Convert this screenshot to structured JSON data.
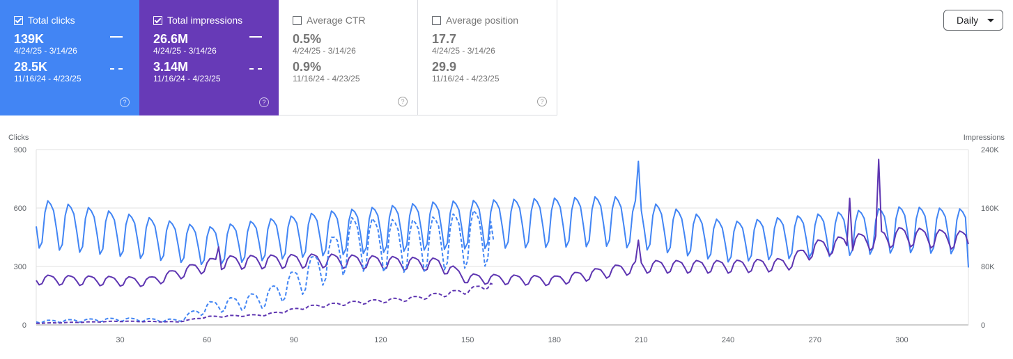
{
  "cards": [
    {
      "id": "clicks",
      "label": "Total clicks",
      "checked": true,
      "value1": "139K",
      "range1": "4/24/25 - 3/14/26",
      "value2": "28.5K",
      "range2": "11/16/24 - 4/23/25"
    },
    {
      "id": "impressions",
      "label": "Total impressions",
      "checked": true,
      "value1": "26.6M",
      "range1": "4/24/25 - 3/14/26",
      "value2": "3.14M",
      "range2": "11/16/24 - 4/23/25"
    },
    {
      "id": "ctr",
      "label": "Average CTR",
      "checked": false,
      "value1": "0.5%",
      "range1": "4/24/25 - 3/14/26",
      "value2": "0.9%",
      "range2": "11/16/24 - 4/23/25"
    },
    {
      "id": "position",
      "label": "Average position",
      "checked": false,
      "value1": "17.7",
      "range1": "4/24/25 - 3/14/26",
      "value2": "29.9",
      "range2": "11/16/24 - 4/23/25"
    }
  ],
  "help_glyph": "?",
  "granularity": {
    "label": "Daily"
  },
  "colors": {
    "clicks": "#4285f4",
    "impressions": "#5e35b1",
    "grid": "#e0e0e0"
  },
  "chart_data": {
    "type": "line",
    "xlabel": "",
    "left_label": "Clicks",
    "right_label": "Impressions",
    "left_ticks": [
      "0",
      "300",
      "600",
      "900"
    ],
    "right_ticks": [
      "0",
      "80K",
      "160K",
      "240K"
    ],
    "x_ticks": [
      30,
      60,
      90,
      120,
      150,
      180,
      210,
      240,
      270,
      300
    ],
    "x_range": [
      1,
      323
    ],
    "ylim_clicks": [
      0,
      900
    ],
    "ylim_impressions": [
      0,
      240000
    ],
    "series": [
      {
        "name": "Clicks",
        "period": "current",
        "axis": "left",
        "style": "solid",
        "color": "#4285f4",
        "anchors": [
          [
            1,
            490
          ],
          [
            60,
            380
          ],
          [
            100,
            440
          ],
          [
            140,
            480
          ],
          [
            200,
            500
          ],
          [
            215,
            470
          ],
          [
            240,
            400
          ],
          [
            260,
            420
          ],
          [
            300,
            460
          ],
          [
            323,
            450
          ]
        ],
        "amplitude": 0.32,
        "spikes": [
          [
            209,
            840
          ]
        ],
        "end_value": 295
      },
      {
        "name": "Impressions",
        "period": "current",
        "axis": "left",
        "style": "solid",
        "color": "#5e35b1",
        "anchors": [
          [
            1,
            225
          ],
          [
            40,
            215
          ],
          [
            64,
            310
          ],
          [
            100,
            320
          ],
          [
            140,
            300
          ],
          [
            150,
            230
          ],
          [
            180,
            220
          ],
          [
            210,
            290
          ],
          [
            240,
            290
          ],
          [
            260,
            300
          ],
          [
            270,
            380
          ],
          [
            300,
            440
          ],
          [
            323,
            420
          ]
        ],
        "amplitude": 0.14,
        "spikes": [
          [
            64,
            400
          ],
          [
            209,
            435
          ],
          [
            282,
            650
          ],
          [
            292,
            850
          ]
        ],
        "end_value": 415
      },
      {
        "name": "Clicks",
        "period": "previous",
        "axis": "left",
        "style": "dashed",
        "color": "#4285f4",
        "anchors": [
          [
            1,
            15
          ],
          [
            30,
            25
          ],
          [
            50,
            20
          ],
          [
            60,
            80
          ],
          [
            80,
            120
          ],
          [
            95,
            230
          ],
          [
            110,
            380
          ],
          [
            130,
            370
          ],
          [
            150,
            400
          ],
          [
            159,
            420
          ]
        ],
        "amplitude": 0.45,
        "spikes": [],
        "end_value": 430
      },
      {
        "name": "Impressions",
        "period": "previous",
        "axis": "left",
        "style": "dashed",
        "color": "#5e35b1",
        "anchors": [
          [
            1,
            8
          ],
          [
            30,
            18
          ],
          [
            50,
            15
          ],
          [
            60,
            40
          ],
          [
            80,
            50
          ],
          [
            95,
            90
          ],
          [
            110,
            110
          ],
          [
            130,
            130
          ],
          [
            150,
            170
          ],
          [
            159,
            205
          ]
        ],
        "amplitude": 0.1,
        "spikes": [],
        "end_value": 205
      }
    ]
  }
}
